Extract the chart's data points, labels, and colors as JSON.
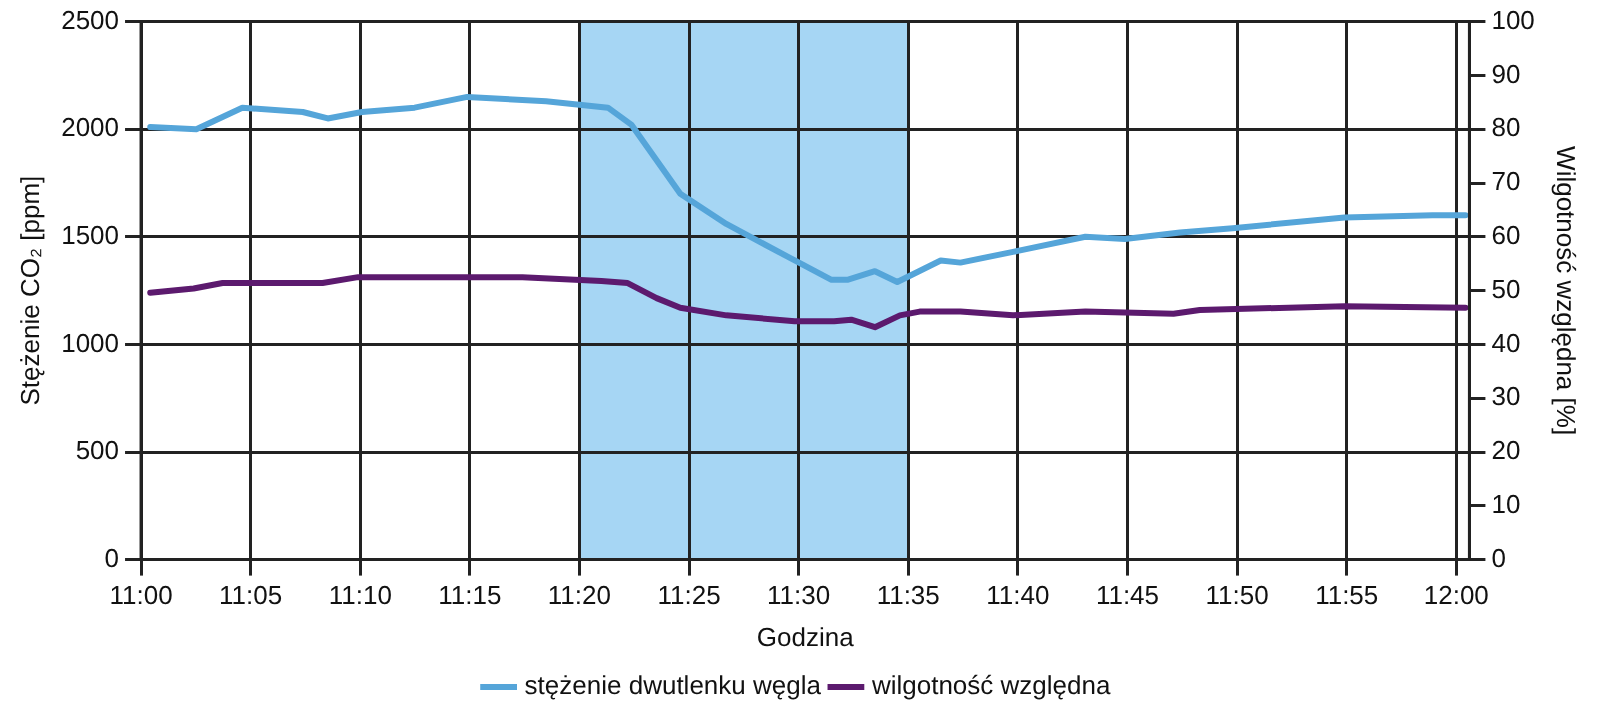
{
  "chart_data": {
    "type": "line",
    "xlabel": "Godzina",
    "ylabel": "Stężenie CO₂ [ppm]",
    "y2label": "Wilgotność względna [%]",
    "xlim": [
      11,
      12.01
    ],
    "xticks": [
      {
        "value": 11,
        "label": "11:00"
      },
      {
        "value": 11.0833,
        "label": "11:05"
      },
      {
        "value": 11.1667,
        "label": "11:10"
      },
      {
        "value": 11.25,
        "label": "11:15"
      },
      {
        "value": 11.3333,
        "label": "11:20"
      },
      {
        "value": 11.4167,
        "label": "11:25"
      },
      {
        "value": 11.5,
        "label": "11:30"
      },
      {
        "value": 11.5833,
        "label": "11:35"
      },
      {
        "value": 11.6667,
        "label": "11:40"
      },
      {
        "value": 11.75,
        "label": "11:45"
      },
      {
        "value": 11.8333,
        "label": "11:50"
      },
      {
        "value": 11.9167,
        "label": "11:55"
      },
      {
        "value": 12,
        "label": "12:00"
      }
    ],
    "ylim": [
      0,
      2500
    ],
    "yticks": [
      0,
      500,
      1000,
      1500,
      2000,
      2500
    ],
    "y2lim": [
      0,
      100
    ],
    "y2ticks": [
      0,
      10,
      20,
      30,
      40,
      50,
      60,
      70,
      80,
      90,
      100
    ],
    "series": [
      {
        "name": "stężenie dwutlenku węgla",
        "color": "#55a5d9",
        "x": [
          11.007,
          11.042,
          11.077,
          11.123,
          11.142,
          11.168,
          11.208,
          11.248,
          11.308,
          11.355,
          11.373,
          11.41,
          11.445,
          11.497,
          11.525,
          11.537,
          11.558,
          11.575,
          11.608,
          11.623,
          11.663,
          11.718,
          11.748,
          11.79,
          11.83,
          11.915,
          11.982,
          12.007
        ],
        "values": [
          2010,
          2000,
          2100,
          2080,
          2050,
          2080,
          2100,
          2150,
          2130,
          2100,
          2020,
          1700,
          1560,
          1390,
          1300,
          1300,
          1340,
          1290,
          1390,
          1380,
          1430,
          1500,
          1490,
          1520,
          1540,
          1590,
          1600,
          1600
        ]
      },
      {
        "name": "wilgotność względna",
        "color": "#5c1a6e",
        "axis": "y2",
        "x": [
          11.007,
          11.04,
          11.062,
          11.138,
          11.165,
          11.29,
          11.35,
          11.37,
          11.392,
          11.41,
          11.445,
          11.497,
          11.527,
          11.54,
          11.558,
          11.577,
          11.592,
          11.623,
          11.663,
          11.718,
          11.785,
          11.805,
          11.915,
          12.007
        ],
        "values": [
          49.6,
          50.4,
          51.4,
          51.4,
          52.5,
          52.5,
          51.8,
          51.4,
          48.6,
          46.8,
          45.4,
          44.3,
          44.3,
          44.6,
          43.2,
          45.4,
          46.1,
          46.1,
          45.4,
          46.1,
          45.7,
          46.4,
          47.1,
          46.8
        ]
      }
    ],
    "bands": [
      {
        "axis": "x",
        "from": 11.3333,
        "to": 11.5833,
        "color": "#a6d6f4"
      }
    ],
    "grid": true,
    "legend": "bottom",
    "marker": "none",
    "line_style": "solid"
  }
}
